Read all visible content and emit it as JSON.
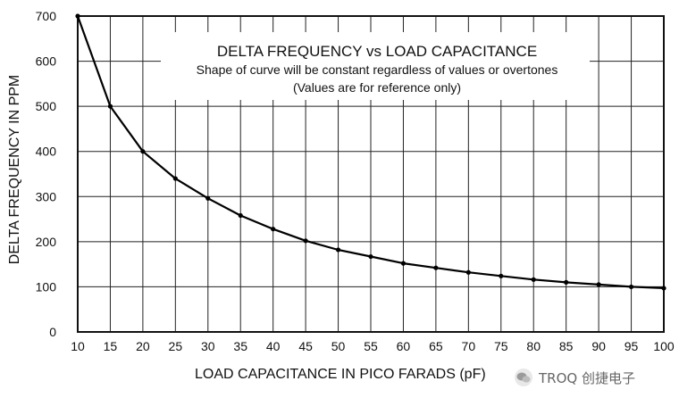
{
  "chart_data": {
    "type": "line",
    "title": "DELTA FREQUENCY vs LOAD CAPACITANCE",
    "subtitle": "Shape of curve will be constant regardless of values or overtones",
    "subtitle2": "(Values are for reference only)",
    "xlabel": "LOAD CAPACITANCE IN PICO FARADS (pF)",
    "ylabel": "DELTA FREQUENCY IN PPM",
    "xlim": [
      10,
      100
    ],
    "ylim": [
      0,
      700
    ],
    "x_ticks": [
      10,
      15,
      20,
      25,
      30,
      35,
      40,
      45,
      50,
      55,
      60,
      65,
      70,
      75,
      80,
      85,
      90,
      95,
      100
    ],
    "y_ticks": [
      0,
      100,
      200,
      300,
      400,
      500,
      600,
      700
    ],
    "grid": true,
    "series": [
      {
        "x": [
          10,
          15,
          20,
          25,
          30,
          35,
          40,
          45,
          50,
          55,
          60,
          65,
          70,
          75,
          80,
          85,
          90,
          95,
          100
        ],
        "y": [
          700,
          500,
          400,
          340,
          296,
          258,
          228,
          202,
          182,
          167,
          152,
          142,
          132,
          124,
          116,
          110,
          105,
          100,
          97
        ]
      }
    ]
  },
  "watermark": {
    "text": "TROQ 创捷电子",
    "icon": "wechat-icon"
  }
}
